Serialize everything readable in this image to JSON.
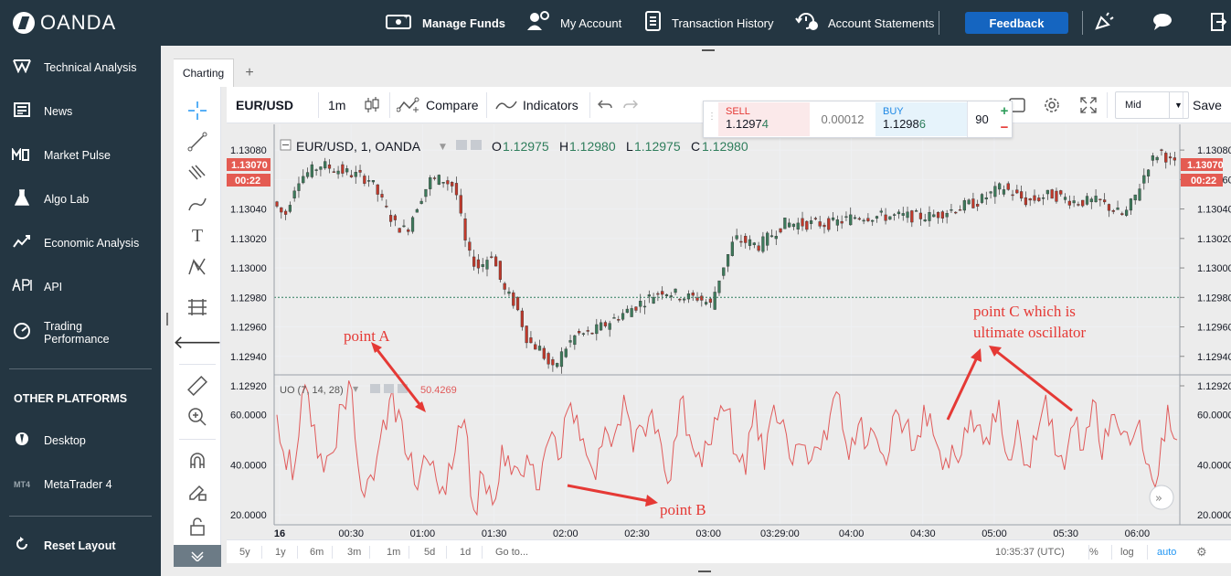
{
  "brand": {
    "name": "OANDA"
  },
  "topnav": {
    "manage_funds": "Manage Funds",
    "my_account": "My Account",
    "transaction_history": "Transaction History",
    "account_statements": "Account Statements",
    "feedback": "Feedback"
  },
  "sidebar": {
    "items": [
      {
        "label": "Technical Analysis",
        "icon": "technical-analysis-icon"
      },
      {
        "label": "News",
        "icon": "news-icon"
      },
      {
        "label": "Market Pulse",
        "icon": "market-pulse-icon"
      },
      {
        "label": "Algo Lab",
        "icon": "flask-icon"
      },
      {
        "label": "Economic Analysis",
        "icon": "economic-chart-icon"
      },
      {
        "label": "API",
        "icon": "api-icon"
      },
      {
        "label": "Trading Performance",
        "icon": "gauge-icon"
      }
    ],
    "other_platforms_heading": "OTHER PLATFORMS",
    "platforms": [
      {
        "label": "Desktop",
        "icon_text": ""
      },
      {
        "label": "MetaTrader 4",
        "icon_text": "MT4"
      }
    ],
    "reset_layout": "Reset Layout"
  },
  "tabs": {
    "charting": "Charting",
    "add": "+"
  },
  "toolbar": {
    "symbol": "EUR/USD",
    "interval": "1m",
    "compare": "Compare",
    "indicators": "Indicators",
    "price_type": "Mid",
    "save": "Save"
  },
  "trade": {
    "sell_label": "SELL",
    "sell_price_main": "1.1297",
    "sell_price_pip": "4",
    "spread": "0.00012",
    "buy_label": "BUY",
    "buy_price_main": "1.1298",
    "buy_price_pip": "6",
    "units": "90",
    "plus": "+",
    "minus": "−"
  },
  "legend": {
    "title": "EUR/USD, 1, OANDA",
    "o_label": "O",
    "o": "1.12975",
    "h_label": "H",
    "h": "1.12980",
    "l_label": "L",
    "l": "1.12975",
    "c_label": "C",
    "c": "1.12980"
  },
  "price_axis": {
    "current_price": "1.13070",
    "countdown": "00:22",
    "ticks": [
      "1.13080",
      "1.13060",
      "1.13040",
      "1.13020",
      "1.13000",
      "1.12980",
      "1.12960",
      "1.12940",
      "1.12920"
    ]
  },
  "osc_legend": {
    "name": "UO (7, 14, 28)",
    "value": "50.4269"
  },
  "osc_axis": {
    "ticks": [
      "60.0000",
      "40.0000",
      "20.0000"
    ]
  },
  "time_axis": {
    "ticks": [
      "16",
      "00:30",
      "01:00",
      "01:30",
      "02:00",
      "02:30",
      "03:00",
      "03:29:00",
      "04:00",
      "04:30",
      "05:00",
      "05:30",
      "06:00"
    ]
  },
  "annotations": {
    "point_a": "point A",
    "point_b": "point B",
    "point_c_line1": "point C which is",
    "point_c_line2": "ultimate oscillator"
  },
  "bottombar": {
    "ranges": [
      "5y",
      "1y",
      "6m",
      "3m",
      "1m",
      "5d",
      "1d"
    ],
    "goto": "Go to...",
    "clock": "10:35:37 (UTC)",
    "percent": "%",
    "log": "log",
    "auto": "auto"
  },
  "colors": {
    "nav_bg": "#243642",
    "up_candle": "#3d7a5b",
    "down_candle": "#c0392b",
    "oscillator": "#e05a5a",
    "annotation": "#e53935",
    "accent": "#1565c0",
    "current_price_bg": "#e45b52"
  },
  "chart_data": {
    "type": "candlestick",
    "symbol": "EUR/USD",
    "interval": "1",
    "price_range": [
      1.1292,
      1.1309
    ],
    "last_close": 1.1307,
    "dotted_price_line": 1.1298,
    "price_path": [
      [
        "00:00",
        1.13045
      ],
      [
        "00:05",
        1.13035
      ],
      [
        "00:10",
        1.1306
      ],
      [
        "00:15",
        1.13065
      ],
      [
        "00:20",
        1.1307
      ],
      [
        "00:30",
        1.13065
      ],
      [
        "00:40",
        1.1306
      ],
      [
        "00:50",
        1.1303
      ],
      [
        "00:55",
        1.13025
      ],
      [
        "01:00",
        1.13045
      ],
      [
        "01:05",
        1.1306
      ],
      [
        "01:10",
        1.1306
      ],
      [
        "01:15",
        1.13055
      ],
      [
        "01:20",
        1.1301
      ],
      [
        "01:25",
        1.13
      ],
      [
        "01:30",
        1.1301
      ],
      [
        "01:35",
        1.12985
      ],
      [
        "01:40",
        1.12975
      ],
      [
        "01:45",
        1.1295
      ],
      [
        "01:50",
        1.12945
      ],
      [
        "01:55",
        1.1293
      ],
      [
        "02:00",
        1.12945
      ],
      [
        "02:05",
        1.12955
      ],
      [
        "02:10",
        1.12955
      ],
      [
        "02:20",
        1.12965
      ],
      [
        "02:30",
        1.12975
      ],
      [
        "02:40",
        1.12985
      ],
      [
        "02:50",
        1.1298
      ],
      [
        "02:55",
        1.1298
      ],
      [
        "03:00",
        1.12975
      ],
      [
        "03:05",
        1.13
      ],
      [
        "03:10",
        1.1302
      ],
      [
        "03:20",
        1.13015
      ],
      [
        "03:30",
        1.1303
      ],
      [
        "03:40",
        1.1303
      ],
      [
        "03:50",
        1.1303
      ],
      [
        "04:00",
        1.13035
      ],
      [
        "04:10",
        1.13035
      ],
      [
        "04:20",
        1.13035
      ],
      [
        "04:30",
        1.13035
      ],
      [
        "04:40",
        1.1304
      ],
      [
        "04:50",
        1.13045
      ],
      [
        "05:00",
        1.13055
      ],
      [
        "05:10",
        1.13045
      ],
      [
        "05:20",
        1.1305
      ],
      [
        "05:30",
        1.13045
      ],
      [
        "05:40",
        1.13045
      ],
      [
        "05:50",
        1.13035
      ],
      [
        "05:55",
        1.1305
      ],
      [
        "06:00",
        1.1307
      ],
      [
        "06:05",
        1.1308
      ],
      [
        "06:10",
        1.1307
      ]
    ],
    "oscillator": {
      "name": "UO (7, 14, 28)",
      "last": 50.4269,
      "range": [
        16,
        76
      ],
      "values": [
        60,
        38,
        42,
        72,
        56,
        37,
        45,
        64,
        70,
        30,
        36,
        50,
        66,
        62,
        42,
        30,
        42,
        34,
        28,
        45,
        58,
        22,
        36,
        24,
        48,
        36,
        36,
        40,
        30,
        50,
        42,
        62,
        60,
        44,
        34,
        55,
        52,
        68,
        45,
        55,
        62,
        48,
        34,
        66,
        52,
        45,
        48,
        58,
        62,
        44,
        36,
        66,
        38,
        64,
        58,
        40,
        48,
        42,
        46,
        60,
        68,
        42,
        56,
        48,
        50,
        40,
        62,
        56,
        46,
        64,
        52,
        38,
        48,
        44,
        62,
        56,
        48,
        66,
        42,
        58,
        40,
        50,
        68,
        44,
        38,
        56,
        46,
        66,
        42,
        60,
        52,
        48,
        58,
        40,
        36,
        64,
        50
      ]
    }
  }
}
